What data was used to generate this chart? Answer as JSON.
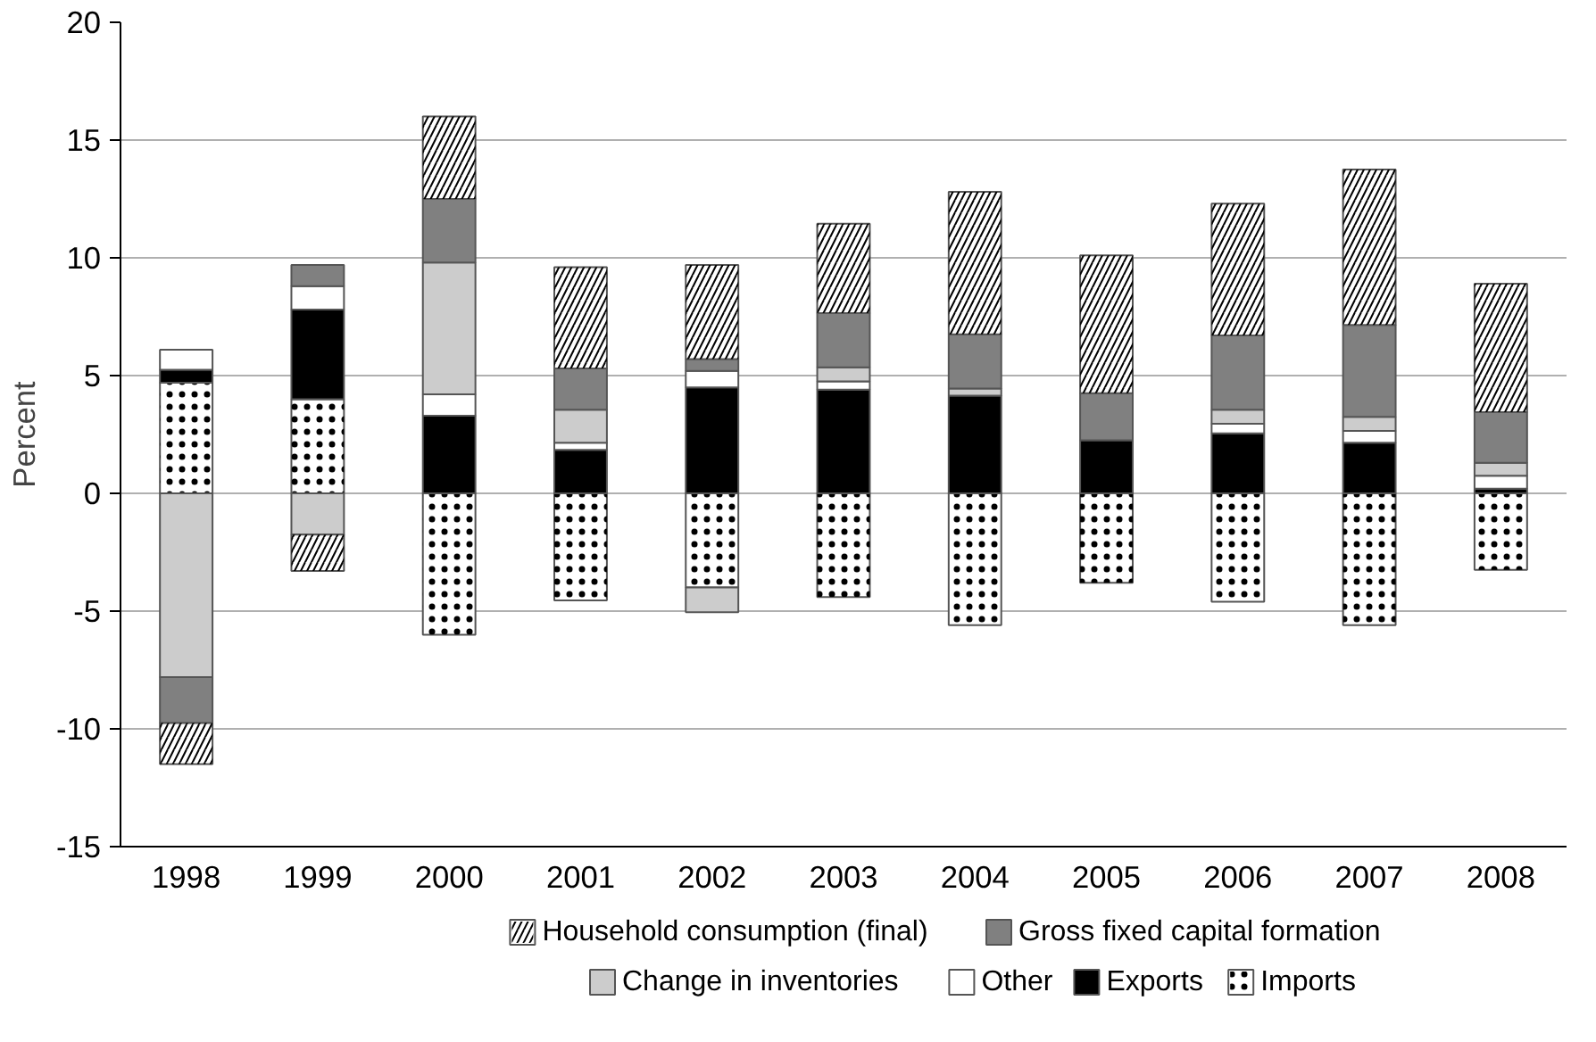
{
  "chart_data": {
    "type": "bar",
    "stacked": true,
    "ylabel": "Percent",
    "categories": [
      "1998",
      "1999",
      "2000",
      "2001",
      "2002",
      "2003",
      "2004",
      "2005",
      "2006",
      "2007",
      "2008"
    ],
    "series": [
      {
        "name": "Imports",
        "color": "#ffffff",
        "values": [
          4.7,
          4.0,
          -6.0,
          -4.55,
          -4.0,
          -4.4,
          -5.6,
          -3.8,
          -4.6,
          -5.6,
          -3.25
        ]
      },
      {
        "name": "Exports",
        "color": "#000000",
        "values": [
          0.55,
          3.8,
          3.3,
          1.85,
          4.5,
          4.4,
          4.15,
          2.25,
          2.55,
          2.15,
          0.2
        ]
      },
      {
        "name": "Other",
        "color": "#ffffff",
        "values": [
          0.85,
          1.0,
          0.9,
          0.3,
          0.7,
          0.35,
          null,
          null,
          0.4,
          0.5,
          0.55
        ]
      },
      {
        "name": "Change in inventories",
        "color": "#cccccc",
        "values": [
          -7.8,
          -1.75,
          5.6,
          1.4,
          -1.05,
          0.6,
          0.3,
          null,
          0.6,
          0.6,
          0.55
        ]
      },
      {
        "name": "Gross fixed capital formation",
        "color": "#808080",
        "values": [
          -1.95,
          0.9,
          2.7,
          1.75,
          0.5,
          2.3,
          2.3,
          2.0,
          3.15,
          3.9,
          2.15
        ]
      },
      {
        "name": "Household consumption (final)",
        "color": "#ffffff",
        "values": [
          -1.75,
          -1.55,
          3.5,
          4.3,
          4.0,
          3.8,
          6.05,
          5.85,
          5.6,
          6.6,
          5.45
        ]
      }
    ],
    "ylim": [
      -15,
      20
    ],
    "yticks": [
      -15,
      -10,
      -5,
      0,
      5,
      10,
      15,
      20
    ],
    "grid": "y",
    "legend": "bottom"
  }
}
